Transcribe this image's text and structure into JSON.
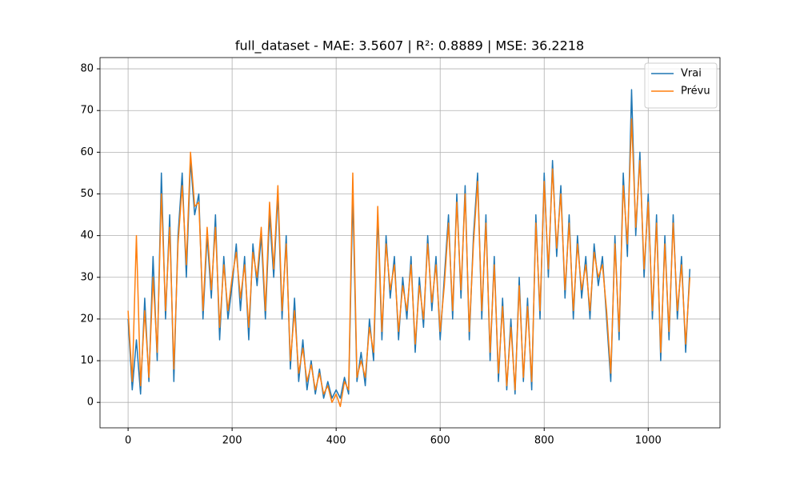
{
  "chart_data": {
    "type": "line",
    "title": "full_dataset - MAE: 3.5607 | R²: 0.8889 | MSE: 36.2218",
    "x": [
      0,
      8,
      16,
      24,
      32,
      40,
      48,
      56,
      64,
      72,
      80,
      88,
      96,
      104,
      112,
      120,
      128,
      136,
      144,
      152,
      160,
      168,
      176,
      184,
      192,
      200,
      208,
      216,
      224,
      232,
      240,
      248,
      256,
      264,
      272,
      280,
      288,
      296,
      304,
      312,
      320,
      328,
      336,
      344,
      352,
      360,
      368,
      376,
      384,
      392,
      400,
      408,
      416,
      424,
      432,
      440,
      448,
      456,
      464,
      472,
      480,
      488,
      496,
      504,
      512,
      520,
      528,
      536,
      544,
      552,
      560,
      568,
      576,
      584,
      592,
      600,
      608,
      616,
      624,
      632,
      640,
      648,
      656,
      664,
      672,
      680,
      688,
      696,
      704,
      712,
      720,
      728,
      736,
      744,
      752,
      760,
      768,
      776,
      784,
      792,
      800,
      808,
      816,
      824,
      832,
      840,
      848,
      856,
      864,
      872,
      880,
      888,
      896,
      904,
      912,
      920,
      928,
      936,
      944,
      952,
      960,
      968,
      976,
      984,
      992,
      1000,
      1008,
      1016,
      1024,
      1032,
      1040,
      1048,
      1056,
      1064,
      1072,
      1080
    ],
    "series": [
      {
        "name": "Vrai",
        "color": "#1f77b4",
        "values": [
          20,
          3,
          15,
          2,
          25,
          5,
          35,
          10,
          55,
          20,
          45,
          5,
          40,
          55,
          30,
          58,
          45,
          50,
          20,
          40,
          25,
          45,
          15,
          35,
          20,
          28,
          38,
          22,
          35,
          15,
          38,
          28,
          40,
          20,
          45,
          30,
          50,
          20,
          40,
          8,
          25,
          5,
          15,
          3,
          10,
          2,
          8,
          1,
          5,
          1,
          3,
          1,
          6,
          2,
          50,
          5,
          12,
          4,
          20,
          10,
          45,
          15,
          40,
          25,
          35,
          15,
          30,
          20,
          35,
          12,
          30,
          18,
          40,
          22,
          35,
          15,
          30,
          45,
          20,
          50,
          25,
          52,
          15,
          40,
          55,
          20,
          45,
          10,
          35,
          5,
          25,
          3,
          20,
          2,
          30,
          5,
          25,
          3,
          45,
          20,
          55,
          30,
          58,
          35,
          52,
          25,
          45,
          20,
          40,
          25,
          35,
          20,
          38,
          28,
          35,
          20,
          5,
          40,
          15,
          55,
          35,
          75,
          40,
          60,
          30,
          50,
          20,
          45,
          10,
          40,
          15,
          45,
          20,
          35,
          12,
          32
        ]
      },
      {
        "name": "Prévu",
        "color": "#ff7f0e",
        "values": [
          22,
          5,
          40,
          4,
          22,
          6,
          30,
          12,
          50,
          22,
          42,
          8,
          38,
          52,
          33,
          60,
          47,
          48,
          22,
          42,
          27,
          42,
          18,
          33,
          22,
          30,
          36,
          25,
          33,
          18,
          36,
          30,
          42,
          22,
          48,
          32,
          52,
          22,
          38,
          10,
          22,
          7,
          13,
          5,
          9,
          3,
          7,
          2,
          4,
          0,
          2,
          -1,
          5,
          3,
          55,
          6,
          10,
          6,
          18,
          12,
          47,
          17,
          38,
          27,
          33,
          17,
          28,
          22,
          33,
          14,
          28,
          20,
          38,
          24,
          33,
          17,
          28,
          43,
          22,
          48,
          27,
          50,
          17,
          38,
          53,
          22,
          43,
          12,
          33,
          7,
          23,
          4,
          18,
          3,
          28,
          6,
          23,
          5,
          43,
          22,
          53,
          32,
          56,
          37,
          50,
          27,
          43,
          22,
          38,
          27,
          33,
          22,
          36,
          30,
          33,
          22,
          7,
          38,
          17,
          52,
          38,
          68,
          42,
          58,
          32,
          48,
          22,
          43,
          12,
          38,
          17,
          43,
          22,
          33,
          14,
          30
        ]
      }
    ],
    "xlim": [
      -54,
      1138
    ],
    "ylim": [
      -6.1,
      82.7
    ],
    "xticks": [
      0,
      200,
      400,
      600,
      800,
      1000
    ],
    "yticks": [
      0,
      10,
      20,
      30,
      40,
      50,
      60,
      70,
      80
    ],
    "grid": true,
    "legend": "upper right"
  }
}
